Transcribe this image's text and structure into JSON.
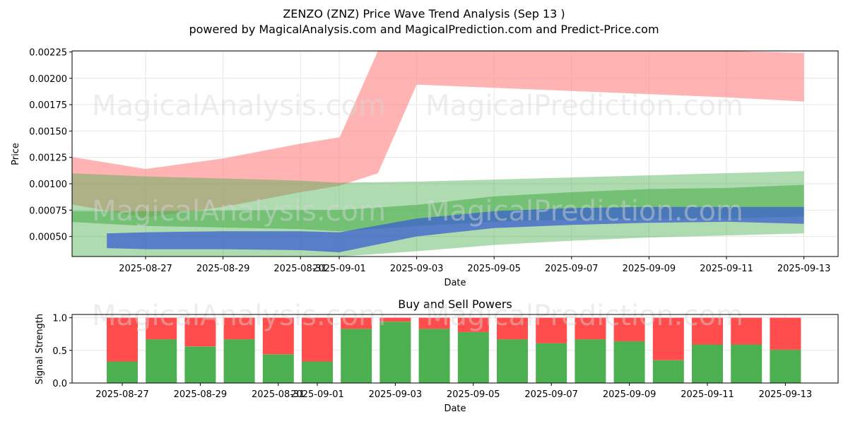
{
  "title_line1": "ZENZO (ZNZ) Price Wave Trend Analysis (Sep 13 )",
  "title_line2": "powered by MagicalAnalysis.com and MagicalPrediction.com and Predict-Price.com",
  "watermarks": [
    "MagicalAnalysis.com",
    "MagicalPrediction.com"
  ],
  "colors": {
    "red_band": "#ff8080",
    "green_band": "#4caf50",
    "blue_band": "#3a5fcd",
    "buy": "#4caf50",
    "sell": "#ff4c4c"
  },
  "chart_data": [
    {
      "type": "area",
      "title": "",
      "xlabel": "Date",
      "ylabel": "Price",
      "ylim": [
        0.00031,
        0.00226
      ],
      "x_ticks": [
        "2025-08-27",
        "2025-08-29",
        "2025-08-31",
        "2025-09-01",
        "2025-09-03",
        "2025-09-05",
        "2025-09-07",
        "2025-09-09",
        "2025-09-11",
        "2025-09-13"
      ],
      "y_ticks": [
        "0.00050",
        "0.00075",
        "0.00100",
        "0.00125",
        "0.00150",
        "0.00175",
        "0.00200",
        "0.00225"
      ],
      "grid": true,
      "series": [
        {
          "kind": "band",
          "color": "red",
          "x": [
            "2025-08-25",
            "2025-08-27",
            "2025-08-29",
            "2025-08-31",
            "2025-09-01",
            "2025-09-01",
            "2025-09-02",
            "2025-09-03",
            "2025-09-05",
            "2025-09-07",
            "2025-09-09",
            "2025-09-11",
            "2025-09-13"
          ],
          "upper": [
            0.00126,
            0.00114,
            0.00124,
            0.00138,
            0.00144,
            0.00143,
            0.00226,
            0.00226,
            0.00226,
            0.00226,
            0.00226,
            0.00226,
            0.00224
          ],
          "lower": [
            0.00081,
            0.00068,
            0.00078,
            0.00092,
            0.00098,
            0.00098,
            0.0011,
            0.00194,
            0.00191,
            0.00188,
            0.00185,
            0.00182,
            0.00178
          ]
        },
        {
          "kind": "band",
          "color": "green-light",
          "x": [
            "2025-08-25",
            "2025-08-27",
            "2025-08-31",
            "2025-09-01",
            "2025-09-03",
            "2025-09-05",
            "2025-09-07",
            "2025-09-09",
            "2025-09-11",
            "2025-09-13"
          ],
          "upper": [
            0.0011,
            0.00107,
            0.00103,
            0.00101,
            0.00102,
            0.00104,
            0.00106,
            0.00108,
            0.0011,
            0.00112
          ],
          "lower": [
            0.00031,
            0.00031,
            0.00031,
            0.00031,
            0.00036,
            0.00042,
            0.00046,
            0.00049,
            0.00051,
            0.00053
          ]
        },
        {
          "kind": "band",
          "color": "green-dark",
          "x": [
            "2025-08-25",
            "2025-08-27",
            "2025-08-31",
            "2025-09-01",
            "2025-09-03",
            "2025-09-05",
            "2025-09-07",
            "2025-09-09",
            "2025-09-11",
            "2025-09-13"
          ],
          "upper": [
            0.00074,
            0.00074,
            0.00075,
            0.00075,
            0.0008,
            0.00088,
            0.00092,
            0.00095,
            0.00096,
            0.00099
          ],
          "lower": [
            0.00064,
            0.0006,
            0.00057,
            0.00055,
            0.0006,
            0.00064,
            0.00066,
            0.00067,
            0.00067,
            0.00069
          ]
        },
        {
          "kind": "band",
          "color": "blue",
          "x": [
            "2025-08-26",
            "2025-08-27",
            "2025-08-29",
            "2025-08-31",
            "2025-09-01",
            "2025-09-03",
            "2025-09-05",
            "2025-09-07",
            "2025-09-09",
            "2025-09-11",
            "2025-09-13"
          ],
          "upper": [
            0.00053,
            0.00054,
            0.00055,
            0.00055,
            0.00054,
            0.00067,
            0.00074,
            0.00077,
            0.00078,
            0.00078,
            0.00078
          ],
          "lower": [
            0.00039,
            0.00038,
            0.00038,
            0.00037,
            0.00035,
            0.0005,
            0.00058,
            0.00061,
            0.00063,
            0.00064,
            0.00062
          ]
        }
      ]
    },
    {
      "type": "bar",
      "title": "Buy and Sell Powers",
      "xlabel": "Date",
      "ylabel": "Signal Strength",
      "ylim": [
        0,
        1.05
      ],
      "x_ticks": [
        "2025-08-27",
        "2025-08-29",
        "2025-08-31",
        "2025-09-01",
        "2025-09-03",
        "2025-09-05",
        "2025-09-07",
        "2025-09-09",
        "2025-09-11",
        "2025-09-13"
      ],
      "y_ticks": [
        "0.0",
        "0.5",
        "1.0"
      ],
      "grid": true,
      "categories": [
        "2025-08-27",
        "2025-08-28",
        "2025-08-29",
        "2025-08-30",
        "2025-08-31",
        "2025-09-01",
        "2025-09-02",
        "2025-09-03",
        "2025-09-04",
        "2025-09-05",
        "2025-09-06",
        "2025-09-07",
        "2025-09-08",
        "2025-09-09",
        "2025-09-10",
        "2025-09-11",
        "2025-09-12",
        "2025-09-13"
      ],
      "series": [
        {
          "name": "Buy",
          "values": [
            0.33,
            0.67,
            0.56,
            0.67,
            0.44,
            0.33,
            0.83,
            0.94,
            0.83,
            0.78,
            0.67,
            0.61,
            0.67,
            0.64,
            0.35,
            0.59,
            0.59,
            0.51
          ]
        },
        {
          "name": "Sell",
          "values": [
            0.67,
            0.33,
            0.44,
            0.33,
            0.56,
            0.67,
            0.17,
            0.06,
            0.17,
            0.22,
            0.33,
            0.39,
            0.33,
            0.36,
            0.65,
            0.41,
            0.41,
            0.49
          ]
        }
      ]
    }
  ]
}
